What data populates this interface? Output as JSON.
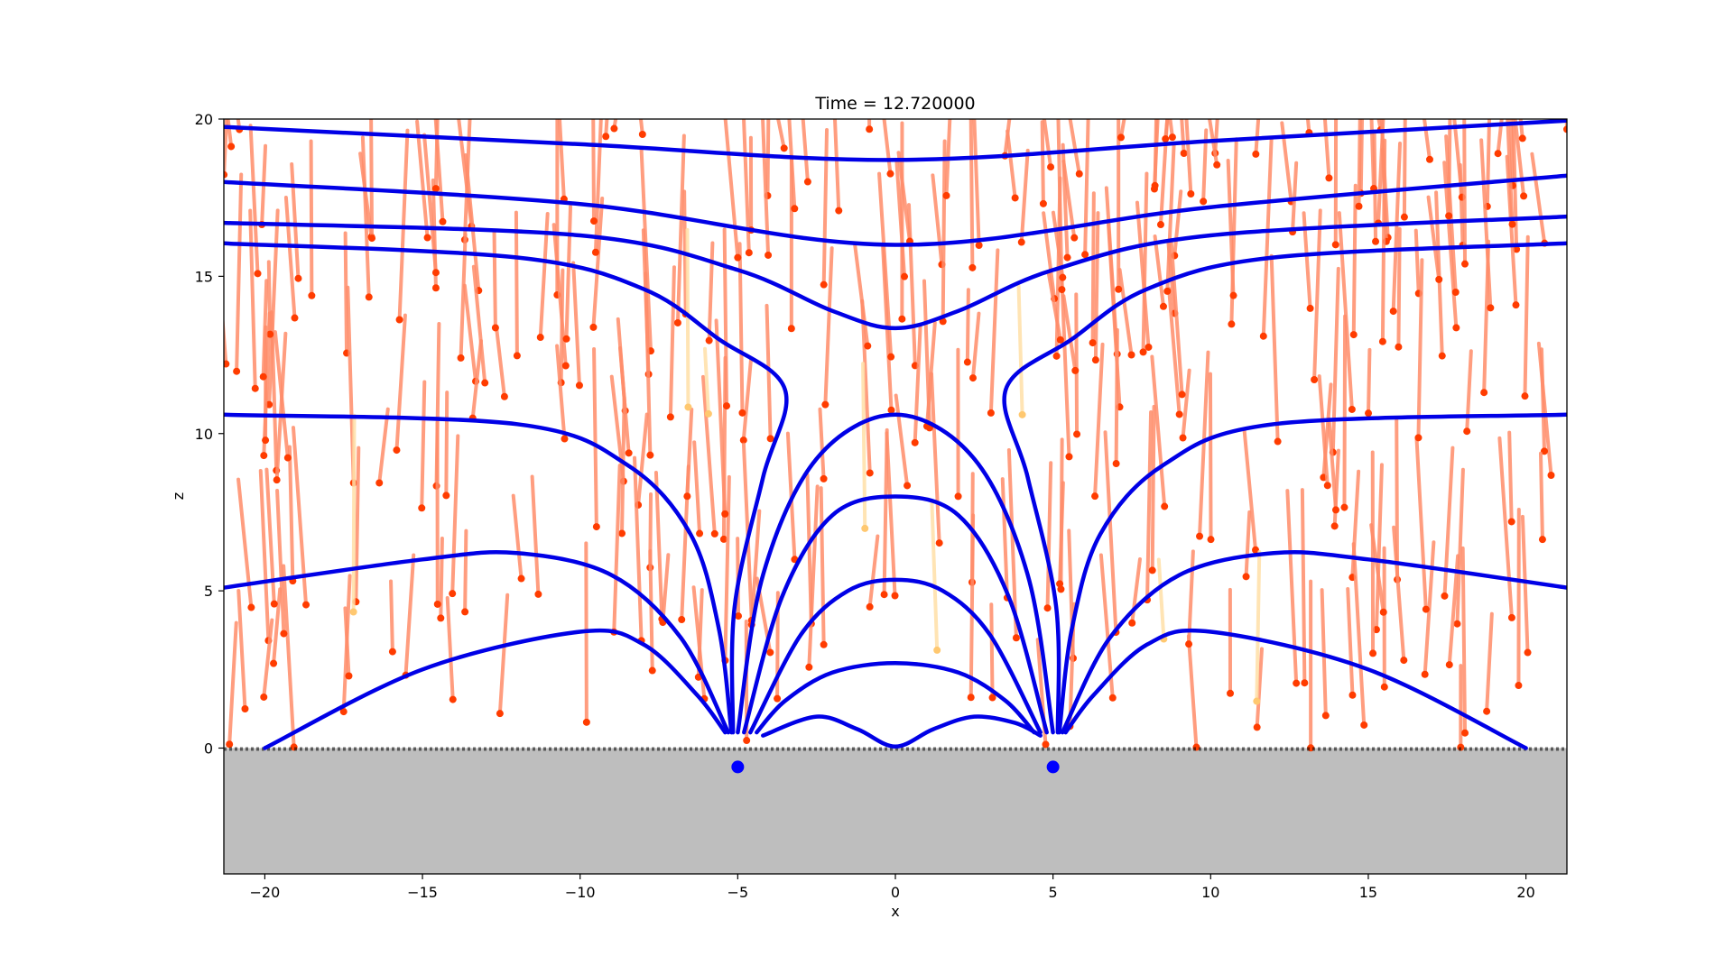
{
  "chart_data": {
    "type": "line",
    "title": "Time = 12.720000",
    "xlabel": "x",
    "ylabel": "z",
    "xlim": [
      -21.3,
      21.3
    ],
    "ylim": [
      -4,
      20
    ],
    "xticks": [
      -20,
      -15,
      -10,
      -5,
      0,
      5,
      10,
      15,
      20
    ],
    "xtick_labels": [
      "−20",
      "−15",
      "−10",
      "−5",
      "0",
      "5",
      "10",
      "15",
      "20"
    ],
    "yticks": [
      0,
      5,
      10,
      15,
      20
    ],
    "ytick_labels": [
      "0",
      "5",
      "10",
      "15",
      "20"
    ],
    "grid": false,
    "legend": "none",
    "colors": {
      "field_lines": "#0000e6",
      "sources": "#0000ff",
      "trails": "#ff8c69",
      "trail_heads": "#ff3c00",
      "faded_trails": "#ffe0a8",
      "ground": "#bebebe",
      "surface": "#000000"
    },
    "ground_level": 0,
    "sources": [
      {
        "x": -5,
        "z": -0.6
      },
      {
        "x": 5,
        "z": -0.6
      }
    ],
    "series": [
      {
        "points": [
          [
            -21.3,
            19.75
          ],
          [
            -10,
            19.2
          ],
          [
            0,
            18.7
          ],
          [
            10,
            19.3
          ],
          [
            21.3,
            19.95
          ]
        ]
      },
      {
        "points": [
          [
            -21.3,
            18.0
          ],
          [
            -10,
            17.3
          ],
          [
            0,
            16.0
          ],
          [
            10,
            17.2
          ],
          [
            21.3,
            18.2
          ]
        ]
      },
      {
        "points": [
          [
            -21.3,
            16.7
          ],
          [
            -10,
            16.3
          ],
          [
            -5,
            15.2
          ],
          [
            -2,
            13.9
          ],
          [
            0,
            13.35
          ],
          [
            2,
            13.9
          ],
          [
            5,
            15.2
          ],
          [
            10,
            16.3
          ],
          [
            21.3,
            16.9
          ]
        ]
      },
      {
        "points": [
          [
            -21.3,
            16.05
          ],
          [
            -12,
            15.6
          ],
          [
            -8,
            14.6
          ],
          [
            -5.6,
            13.0
          ],
          [
            -3.5,
            11.4
          ],
          [
            -4.2,
            8.6
          ],
          [
            -5.1,
            4.5
          ],
          [
            -5.15,
            0.5
          ]
        ]
      },
      {
        "points": [
          [
            21.3,
            16.05
          ],
          [
            12,
            15.6
          ],
          [
            8,
            14.6
          ],
          [
            5.6,
            13.0
          ],
          [
            3.5,
            11.4
          ],
          [
            4.2,
            8.6
          ],
          [
            5.1,
            4.5
          ],
          [
            5.15,
            0.5
          ]
        ]
      },
      {
        "points": [
          [
            -21.3,
            10.6
          ],
          [
            -12,
            10.3
          ],
          [
            -8.5,
            9.0
          ],
          [
            -6.5,
            6.8
          ],
          [
            -5.6,
            3.8
          ],
          [
            -5.2,
            0.5
          ]
        ]
      },
      {
        "points": [
          [
            21.3,
            10.6
          ],
          [
            12,
            10.3
          ],
          [
            8.5,
            9.0
          ],
          [
            6.5,
            6.8
          ],
          [
            5.6,
            3.8
          ],
          [
            5.2,
            0.5
          ]
        ]
      },
      {
        "points": [
          [
            -21.3,
            5.1
          ],
          [
            -15,
            6.0
          ],
          [
            -12,
            6.2
          ],
          [
            -9,
            5.5
          ],
          [
            -6.8,
            3.5
          ],
          [
            -5.3,
            0.5
          ]
        ]
      },
      {
        "points": [
          [
            21.3,
            5.1
          ],
          [
            15,
            6.0
          ],
          [
            12,
            6.2
          ],
          [
            9,
            5.5
          ],
          [
            6.8,
            3.5
          ],
          [
            5.3,
            0.5
          ]
        ]
      },
      {
        "points": [
          [
            -20,
            0
          ],
          [
            -15,
            2.5
          ],
          [
            -10,
            3.7
          ],
          [
            -8,
            3.3
          ],
          [
            -6.3,
            1.7
          ],
          [
            -5.4,
            0.5
          ]
        ]
      },
      {
        "points": [
          [
            20,
            0
          ],
          [
            15,
            2.5
          ],
          [
            10,
            3.7
          ],
          [
            8,
            3.3
          ],
          [
            6.3,
            1.7
          ],
          [
            5.4,
            0.5
          ]
        ]
      },
      {
        "points": [
          [
            -5,
            0.5
          ],
          [
            -4.2,
            5.5
          ],
          [
            -2.5,
            9.2
          ],
          [
            0,
            10.6
          ],
          [
            2.5,
            9.2
          ],
          [
            4.2,
            5.5
          ],
          [
            5,
            0.5
          ]
        ]
      },
      {
        "points": [
          [
            -4.8,
            0.5
          ],
          [
            -3.6,
            4.8
          ],
          [
            -2,
            7.4
          ],
          [
            0,
            8.0
          ],
          [
            2,
            7.4
          ],
          [
            3.6,
            4.8
          ],
          [
            4.8,
            0.5
          ]
        ]
      },
      {
        "points": [
          [
            -4.6,
            0.5
          ],
          [
            -3.0,
            3.6
          ],
          [
            -1.5,
            5.0
          ],
          [
            0,
            5.35
          ],
          [
            1.5,
            5.0
          ],
          [
            3.0,
            3.6
          ],
          [
            4.6,
            0.5
          ]
        ]
      },
      {
        "points": [
          [
            -4.4,
            0.5
          ],
          [
            -3.5,
            1.5
          ],
          [
            -2,
            2.4
          ],
          [
            0,
            2.7
          ],
          [
            2,
            2.4
          ],
          [
            3.5,
            1.5
          ],
          [
            4.4,
            0.5
          ]
        ]
      },
      {
        "points": [
          [
            -4.2,
            0.4
          ],
          [
            -2.5,
            1.0
          ],
          [
            -1.2,
            0.6
          ],
          [
            0,
            0.05
          ],
          [
            1.2,
            0.6
          ],
          [
            2.5,
            1.0
          ],
          [
            3.8,
            0.8
          ],
          [
            4.6,
            0.4
          ]
        ]
      }
    ]
  }
}
